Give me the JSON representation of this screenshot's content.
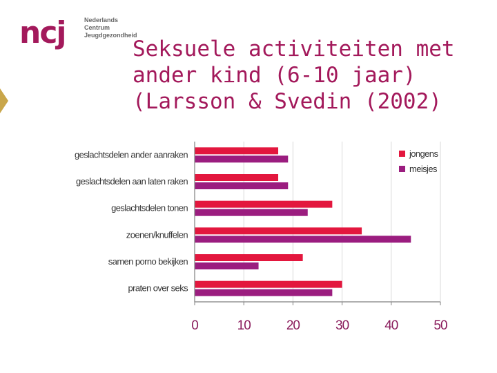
{
  "logo": {
    "mark": "ncj",
    "lines": [
      "Nederlands",
      "Centrum",
      "Jeugdgezondheid"
    ]
  },
  "title_lines": [
    "Seksuele activiteiten met",
    "ander kind (6-10 jaar)",
    "(Larsson & Svedin (2002)"
  ],
  "chart_data": {
    "type": "bar",
    "orientation": "horizontal",
    "categories": [
      "geslachtsdelen ander aanraken",
      "geslachtsdelen aan laten raken",
      "geslachtsdelen tonen",
      "zoenen/knuffelen",
      "samen porno bekijken",
      "praten over seks"
    ],
    "series": [
      {
        "name": "jongens",
        "color": "#e3173e",
        "values": [
          17,
          17,
          28,
          34,
          22,
          30
        ]
      },
      {
        "name": "meisjes",
        "color": "#9b1d7f",
        "values": [
          19,
          19,
          23,
          44,
          13,
          28
        ]
      }
    ],
    "xlim": [
      0,
      50
    ],
    "xticks": [
      "0",
      "10",
      "20",
      "30",
      "40",
      "50"
    ],
    "legend_position": "top-right",
    "grid": true
  }
}
